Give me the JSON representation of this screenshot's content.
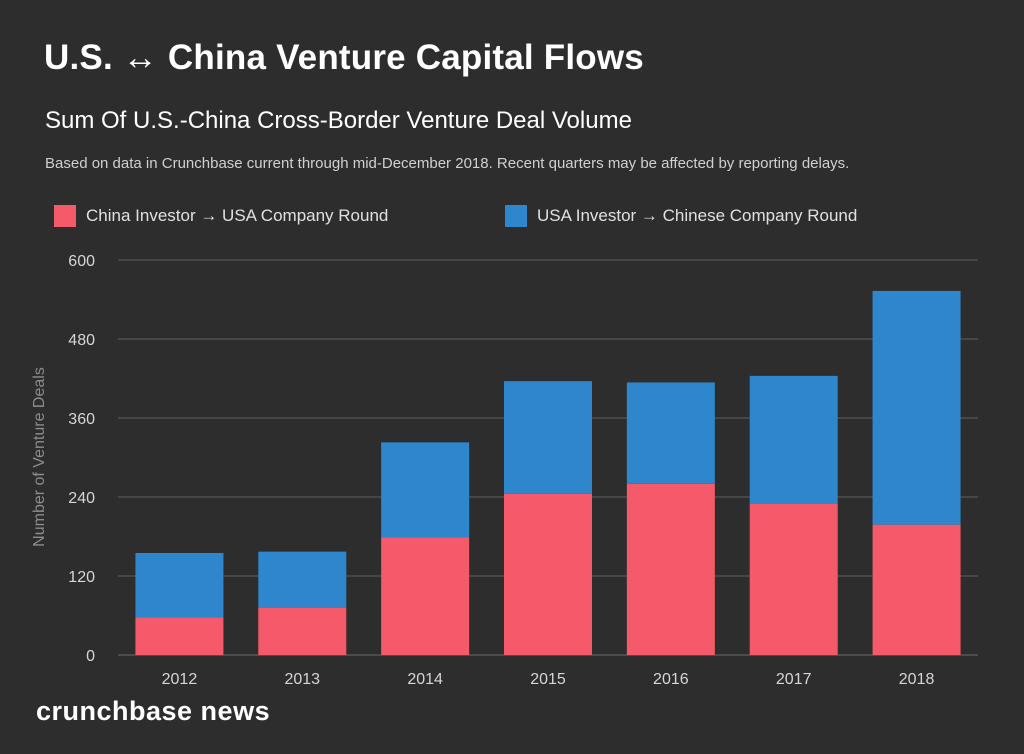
{
  "chart_data": {
    "type": "bar",
    "stacked": true,
    "title": "U.S. ↔ China Venture Capital Flows",
    "subtitle": "Sum Of U.S.-China Cross-Border Venture Deal Volume",
    "note": "Based on data in Crunchbase current through mid-December 2018. Recent quarters may be affected by reporting delays.",
    "xlabel": "",
    "ylabel": "Number of Venture Deals",
    "ylim": [
      0,
      600
    ],
    "yticks": [
      0,
      120,
      240,
      360,
      480,
      600
    ],
    "categories": [
      "2012",
      "2013",
      "2014",
      "2015",
      "2016",
      "2017",
      "2018"
    ],
    "series": [
      {
        "name": "China Investor → USA Company Round",
        "color": "#f45a69",
        "values": [
          57,
          72,
          179,
          245,
          260,
          230,
          198
        ]
      },
      {
        "name": "USA Investor → Chinese Company Round",
        "color": "#2e87cc",
        "values": [
          98,
          85,
          144,
          171,
          154,
          194,
          355
        ]
      }
    ],
    "grid": true,
    "legend": "top-left"
  },
  "brand": "crunchbase news"
}
